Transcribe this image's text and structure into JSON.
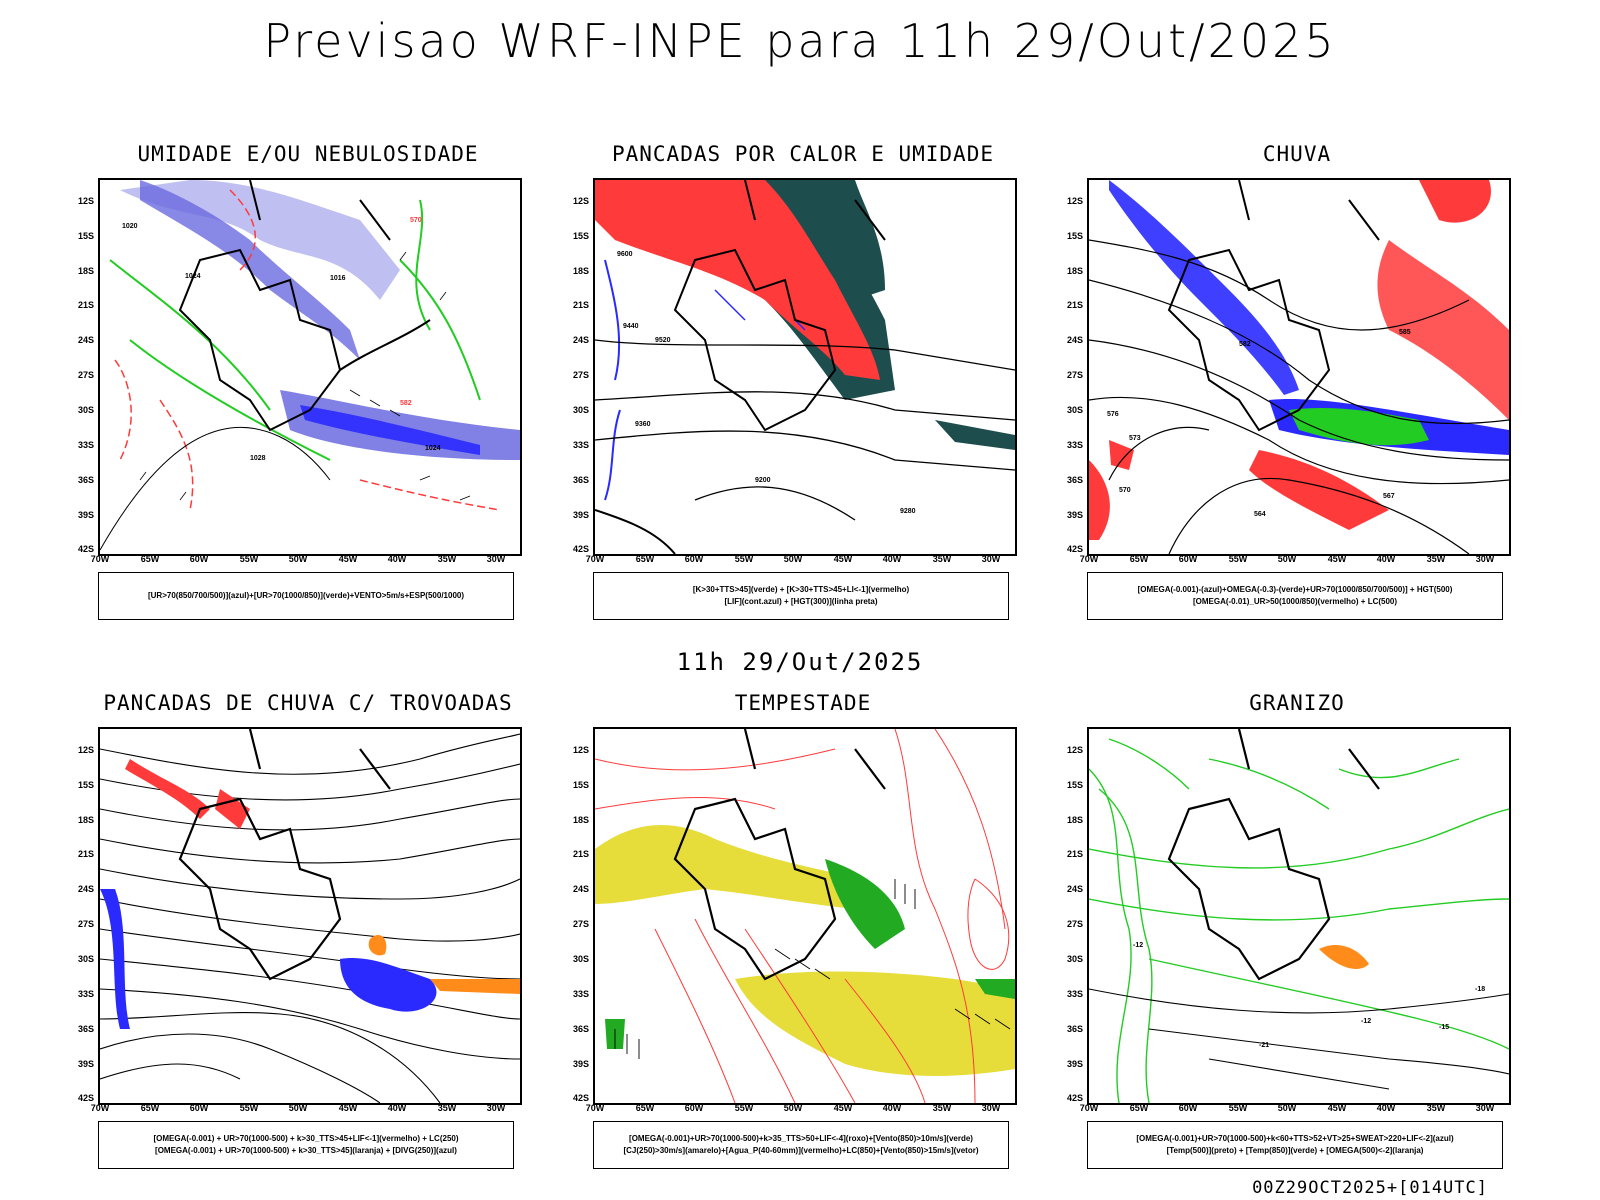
{
  "title": "Previsao WRF-INPE  para 11h 29/Out/2025",
  "mid_title": "11h 29/Out/2025",
  "footer": "00Z29OCT2025+[014UTC]",
  "lat_ticks": [
    "12S",
    "15S",
    "18S",
    "21S",
    "24S",
    "27S",
    "30S",
    "33S",
    "36S",
    "39S",
    "42S"
  ],
  "lon_ticks": [
    "70W",
    "65W",
    "60W",
    "55W",
    "50W",
    "45W",
    "40W",
    "35W",
    "30W"
  ],
  "colors": {
    "blue": "#2a2aff",
    "green": "#22cc22",
    "red": "#ff3a3a",
    "dark": "#1e4d4d",
    "yellow": "#e6dc3a",
    "orange": "#ff8c1a",
    "lavender": "#b8b8f0"
  },
  "panels": [
    {
      "title": "UMIDADE E/OU NEBULOSIDADE",
      "legend": [
        "[UR>70(850/700/500)](azul)+[UR>70(1000/850)](verde)+VENTO>5m/s+ESP(500/1000)"
      ],
      "contour_labels": [
        "1020",
        "1016",
        "1024",
        "570",
        "1028",
        "582"
      ]
    },
    {
      "title": "PANCADAS POR CALOR E UMIDADE",
      "legend": [
        "[K>30+TTS>45](verde) + [K>30+TTS>45+LI<-1](vermelho)",
        "[LIF](cont.azul) + [HGT(300)](linha preta)"
      ],
      "contour_labels": [
        "9600",
        "9520",
        "9440",
        "9360",
        "9280",
        "9200"
      ]
    },
    {
      "title": "CHUVA",
      "legend": [
        "[OMEGA(-0.001)-(azul)+OMEGA(-0.3)-(verde)+UR>70(1000/850/700/500)] + HGT(500)",
        "[OMEGA(-0.01)_UR>50(1000/850)(vermelho) + LC(500)"
      ],
      "contour_labels": [
        "576",
        "573",
        "570",
        "582",
        "585",
        "567",
        "564"
      ]
    },
    {
      "title": "PANCADAS DE CHUVA C/ TROVOADAS",
      "legend": [
        "[OMEGA(-0.001) + UR>70(1000-500) + k>30_TTS>45+LIF<-1](vermelho) + LC(250)",
        "[OMEGA(-0.001) + UR>70(1000-500) + k>30_TTS>45](laranja) + [DIVG(250)](azul)"
      ],
      "contour_labels": []
    },
    {
      "title": "TEMPESTADE",
      "legend": [
        "[OMEGA(-0.001)+UR>70(1000-500)+k>35_TTS>50+LIF<-4](roxo)+[Vento(850)>10m/s](verde)",
        "[CJ(250)>30m/s](amarelo)+[Agua_P(40-60mm)](vermelho)+LC(850)+[Vento(850)>15m/s](vetor)"
      ],
      "contour_labels": []
    },
    {
      "title": "GRANIZO",
      "legend": [
        "[OMEGA(-0.001)+UR>70(1000-500)+k<60+TTS>52+VT>25+SWEAT>220+LIF<-2](azul)",
        "[Temp(500)](preto) + [Temp(850)](verde) + [OMEGA(500)<-2](laranja)"
      ],
      "contour_labels": [
        "-12",
        "-15",
        "-21",
        "-18"
      ]
    }
  ]
}
